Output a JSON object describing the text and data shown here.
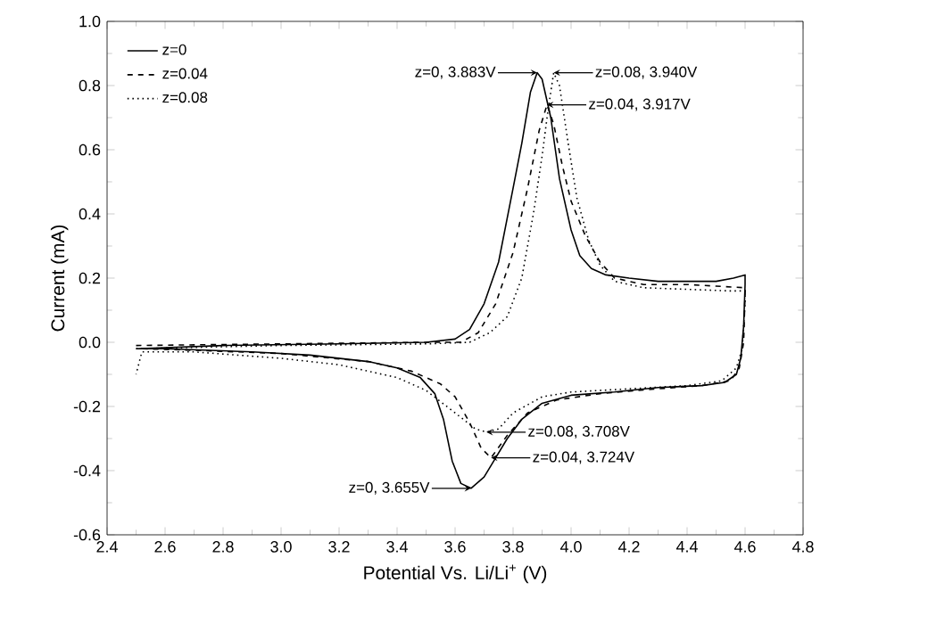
{
  "chart_data": {
    "type": "line",
    "xlabel": "Potential Vs. Li/Li$^{+}$ (V)",
    "ylabel": "Current (mA)",
    "xlim": [
      2.4,
      4.8
    ],
    "ylim": [
      -0.6,
      1.0
    ],
    "xticks": [
      2.4,
      2.6,
      2.8,
      {
        "value": 3.0,
        "label": "3.0"
      },
      3.2,
      3.4,
      3.6,
      3.8,
      {
        "value": 4.0,
        "label": "4.0"
      },
      4.2,
      4.4,
      4.6,
      4.8
    ],
    "yticks": [
      -0.6,
      -0.4,
      -0.2,
      {
        "value": 0,
        "label": "0.0"
      },
      0.2,
      0.4,
      0.6,
      0.8,
      {
        "value": 1.0,
        "label": "1.0"
      }
    ],
    "legend": "top left",
    "grid": false,
    "marker": "none",
    "series": [
      {
        "name": "z=0",
        "color": "#000000",
        "line_style": "solid",
        "x": [
          2.5,
          2.8,
          3.2,
          3.5,
          3.6,
          3.65,
          3.7,
          3.75,
          3.8,
          3.83,
          3.86,
          3.883,
          3.9,
          3.93,
          3.96,
          4.0,
          4.03,
          4.07,
          4.12,
          4.2,
          4.3,
          4.4,
          4.5,
          4.56,
          4.6,
          4.6,
          4.595,
          4.585,
          4.57,
          4.53,
          4.45,
          4.3,
          4.15,
          4.0,
          3.9,
          3.83,
          3.78,
          3.74,
          3.7,
          3.655,
          3.62,
          3.59,
          3.56,
          3.53,
          3.48,
          3.4,
          3.3,
          3.1,
          2.9,
          2.6,
          2.52
        ],
        "values": [
          -0.02,
          -0.01,
          -0.005,
          0.0,
          0.01,
          0.04,
          0.12,
          0.25,
          0.48,
          0.62,
          0.78,
          0.84,
          0.82,
          0.7,
          0.51,
          0.35,
          0.27,
          0.23,
          0.21,
          0.2,
          0.19,
          0.19,
          0.19,
          0.2,
          0.21,
          0.18,
          0.05,
          -0.05,
          -0.1,
          -0.125,
          -0.135,
          -0.141,
          -0.155,
          -0.165,
          -0.19,
          -0.24,
          -0.3,
          -0.36,
          -0.42,
          -0.455,
          -0.44,
          -0.37,
          -0.24,
          -0.16,
          -0.11,
          -0.08,
          -0.06,
          -0.04,
          -0.03,
          -0.02,
          -0.02
        ]
      },
      {
        "name": "z=0.04",
        "color": "#000000",
        "line_style": "dashed",
        "x": [
          2.5,
          3.0,
          3.5,
          3.62,
          3.68,
          3.74,
          3.8,
          3.85,
          3.89,
          3.917,
          3.94,
          3.97,
          4.0,
          4.05,
          4.1,
          4.15,
          4.25,
          4.4,
          4.5,
          4.6,
          4.6,
          4.595,
          4.58,
          4.55,
          4.45,
          4.3,
          4.1,
          3.95,
          3.85,
          3.78,
          3.724,
          3.69,
          3.65,
          3.6,
          3.55,
          3.45,
          3.3,
          3.0,
          2.7,
          2.52
        ],
        "values": [
          -0.01,
          -0.005,
          0.0,
          0.0,
          0.03,
          0.12,
          0.28,
          0.48,
          0.66,
          0.74,
          0.68,
          0.55,
          0.44,
          0.33,
          0.25,
          0.2,
          0.18,
          0.18,
          0.175,
          0.17,
          0.15,
          0.0,
          -0.08,
          -0.12,
          -0.135,
          -0.145,
          -0.16,
          -0.18,
          -0.22,
          -0.29,
          -0.36,
          -0.33,
          -0.25,
          -0.17,
          -0.13,
          -0.09,
          -0.06,
          -0.035,
          -0.025,
          -0.02
        ]
      },
      {
        "name": "z=0.08",
        "color": "#000000",
        "line_style": "dotted",
        "x": [
          2.5,
          3.0,
          3.5,
          3.65,
          3.72,
          3.78,
          3.83,
          3.87,
          3.9,
          3.92,
          3.94,
          3.96,
          3.99,
          4.02,
          4.06,
          4.1,
          4.15,
          4.25,
          4.4,
          4.55,
          4.6,
          4.6,
          4.59,
          4.57,
          4.52,
          4.4,
          4.2,
          4.0,
          3.9,
          3.8,
          3.75,
          3.708,
          3.67,
          3.6,
          3.5,
          3.4,
          3.2,
          3.0,
          2.7,
          2.52,
          2.5
        ],
        "values": [
          -0.02,
          -0.01,
          -0.005,
          0.0,
          0.03,
          0.08,
          0.2,
          0.4,
          0.58,
          0.72,
          0.84,
          0.8,
          0.62,
          0.45,
          0.32,
          0.24,
          0.19,
          0.17,
          0.165,
          0.16,
          0.16,
          0.12,
          -0.02,
          -0.08,
          -0.12,
          -0.135,
          -0.145,
          -0.155,
          -0.17,
          -0.22,
          -0.27,
          -0.28,
          -0.27,
          -0.22,
          -0.15,
          -0.11,
          -0.07,
          -0.05,
          -0.03,
          -0.03,
          -0.1
        ]
      }
    ],
    "annotations": [
      {
        "text": "z=0, 3.883V",
        "x": 3.883,
        "y": 0.84
      },
      {
        "text": "z=0.08, 3.940V",
        "x": 3.94,
        "y": 0.84
      },
      {
        "text": "z=0.04, 3.917V",
        "x": 3.917,
        "y": 0.74
      },
      {
        "text": "z=0.08, 3.708V",
        "x": 3.708,
        "y": -0.28
      },
      {
        "text": "z=0.04, 3.724V",
        "x": 3.724,
        "y": -0.36
      },
      {
        "text": "z=0, 3.655V",
        "x": 3.655,
        "y": -0.455
      }
    ]
  }
}
